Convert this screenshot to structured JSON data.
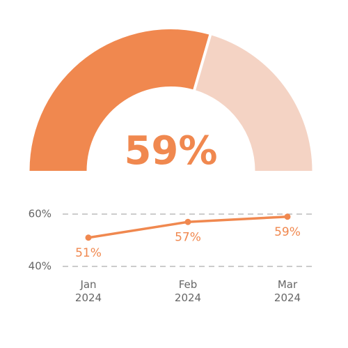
{
  "chart_data": [
    {
      "type": "gauge",
      "value": 59,
      "value_label": "59%",
      "lim": [
        0,
        100
      ],
      "color": "#f0884f",
      "track_color": "#f4d3c4"
    },
    {
      "type": "line",
      "categories": [
        "Jan 2024",
        "Feb 2024",
        "Mar 2024"
      ],
      "values": [
        51,
        57,
        59
      ],
      "value_labels": [
        "51%",
        "57%",
        "59%"
      ],
      "color": "#f0884f",
      "ylim": [
        40,
        60
      ],
      "yticks": [
        {
          "value": 40,
          "label": "40%"
        },
        {
          "value": 60,
          "label": "60%"
        }
      ],
      "grid": true
    }
  ]
}
